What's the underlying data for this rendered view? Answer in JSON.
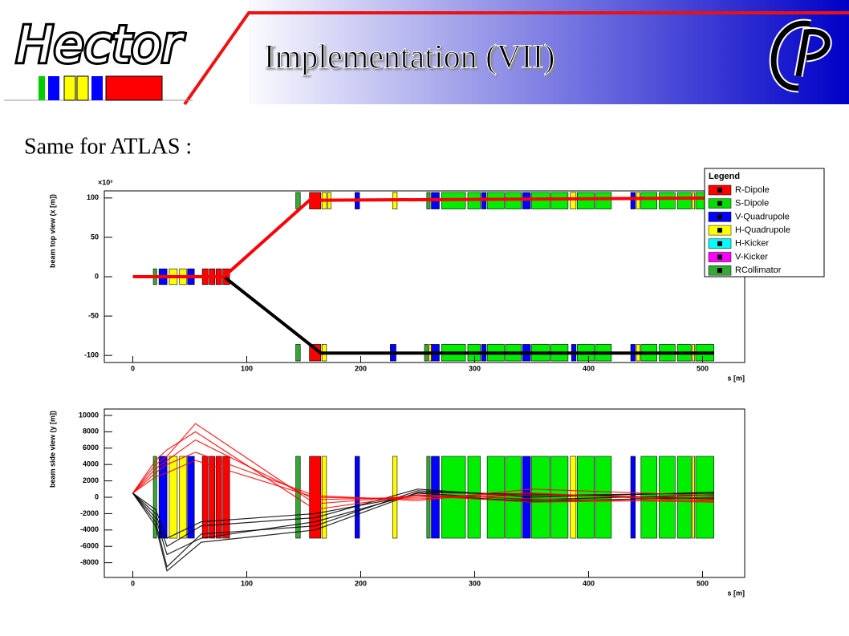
{
  "header": {
    "title": "Implementation (VII)",
    "logo": "Hector"
  },
  "text": "Same for ATLAS :",
  "chart_data": [
    {
      "type": "line",
      "ylabel": "beam top view (x [m])",
      "y_multiplier": "×10³",
      "xlabel": "s [m]",
      "xlim": [
        -25,
        537
      ],
      "ylim": [
        -109,
        109
      ],
      "xticks": [
        0,
        100,
        200,
        300,
        400,
        500
      ],
      "yticks": [
        -100,
        -50,
        0,
        50,
        100
      ],
      "legend_title": "Legend",
      "legend": [
        {
          "name": "R-Dipole",
          "color": "#ff0000"
        },
        {
          "name": "S-Dipole",
          "color": "#00dd00"
        },
        {
          "name": "V-Quadrupole",
          "color": "#0000ff"
        },
        {
          "name": "H-Quadrupole",
          "color": "#ffff00"
        },
        {
          "name": "H-Kicker",
          "color": "#00ffff"
        },
        {
          "name": "V-Kicker",
          "color": "#ff00ff"
        },
        {
          "name": "RCollimator",
          "color": "#33aa33"
        }
      ],
      "elements": [
        {
          "color": "#ff0000",
          "boxes": [
            [
              61,
              66,
              -10,
              10
            ],
            [
              67,
              72,
              -10,
              10
            ],
            [
              73,
              78,
              -10,
              10
            ],
            [
              79,
              85,
              -10,
              10
            ],
            [
              155,
              165,
              86,
              107
            ],
            [
              155,
              165,
              -107,
              -86
            ]
          ]
        },
        {
          "color": "#00ee00",
          "boxes": [
            [
              271,
              292,
              86,
              107
            ],
            [
              294,
              305,
              86,
              107
            ],
            [
              311,
              326,
              86,
              107
            ],
            [
              327,
              341,
              86,
              107
            ],
            [
              350,
              366,
              86,
              107
            ],
            [
              367,
              382,
              86,
              107
            ],
            [
              390,
              405,
              86,
              107
            ],
            [
              406,
              420,
              86,
              107
            ],
            [
              446,
              460,
              86,
              107
            ],
            [
              462,
              476,
              86,
              107
            ],
            [
              478,
              490,
              86,
              107
            ],
            [
              494,
              510,
              86,
              107
            ],
            [
              271,
              292,
              -107,
              -86
            ],
            [
              294,
              305,
              -107,
              -86
            ],
            [
              311,
              326,
              -107,
              -86
            ],
            [
              327,
              341,
              -107,
              -86
            ],
            [
              350,
              366,
              -107,
              -86
            ],
            [
              367,
              382,
              -107,
              -86
            ],
            [
              390,
              405,
              -107,
              -86
            ],
            [
              406,
              420,
              -107,
              -86
            ],
            [
              446,
              460,
              -107,
              -86
            ],
            [
              462,
              476,
              -107,
              -86
            ],
            [
              478,
              490,
              -107,
              -86
            ],
            [
              494,
              510,
              -107,
              -86
            ]
          ]
        },
        {
          "color": "#0000ff",
          "boxes": [
            [
              23,
              30,
              -10,
              10
            ],
            [
              48,
              54,
              -10,
              10
            ],
            [
              195,
              199,
              86,
              107
            ],
            [
              262,
              269,
              86,
              107
            ],
            [
              306,
              310,
              86,
              107
            ],
            [
              342,
              349,
              86,
              107
            ],
            [
              437,
              441,
              86,
              107
            ],
            [
              226,
              231,
              -107,
              -86
            ],
            [
              262,
              269,
              -107,
              -86
            ],
            [
              306,
              310,
              -107,
              -86
            ],
            [
              342,
              349,
              -107,
              -86
            ],
            [
              385,
              389,
              -107,
              -86
            ],
            [
              437,
              441,
              -107,
              -86
            ]
          ]
        },
        {
          "color": "#ffff00",
          "boxes": [
            [
              32,
              39,
              -10,
              10
            ],
            [
              41,
              47,
              -10,
              10
            ],
            [
              166,
              170,
              86,
              107
            ],
            [
              171,
              174,
              86,
              107
            ],
            [
              228,
              232,
              86,
              107
            ],
            [
              384,
              389,
              86,
              107
            ],
            [
              442,
              445,
              86,
              107
            ],
            [
              491,
              493,
              86,
              107
            ],
            [
              166,
              170,
              -107,
              -86
            ],
            [
              260,
              262,
              -107,
              -86
            ],
            [
              442,
              445,
              -107,
              -86
            ],
            [
              491,
              493,
              -107,
              -86
            ]
          ]
        },
        {
          "color": "#33aa33",
          "boxes": [
            [
              18,
              21,
              -10,
              10
            ],
            [
              143,
              147,
              86,
              107
            ],
            [
              258,
              261,
              86,
              107
            ],
            [
              143,
              147,
              -107,
              -86
            ],
            [
              256,
              259,
              -107,
              -86
            ]
          ]
        }
      ],
      "tracks": [
        {
          "color": "#000000",
          "x": [
            0,
            80,
            165,
            510
          ],
          "values": [
            0,
            0,
            -97,
            -97
          ]
        },
        {
          "color": "#ff0000",
          "x": [
            0,
            80,
            155,
            510
          ],
          "values": [
            0,
            0,
            97,
            100
          ]
        }
      ]
    },
    {
      "type": "line",
      "ylabel": "beam side view (y [m])",
      "xlabel": "s [m]",
      "xlim": [
        -25,
        537
      ],
      "ylim": [
        -9800,
        10780
      ],
      "xticks": [
        0,
        100,
        200,
        300,
        400,
        500
      ],
      "yticks": [
        -8000,
        -6000,
        -4000,
        -2000,
        0,
        2000,
        4000,
        6000,
        8000,
        10000
      ],
      "elements": [
        {
          "color": "#ff0000",
          "boxes": [
            [
              61,
              66,
              -5000,
              5000
            ],
            [
              67,
              72,
              -5000,
              5000
            ],
            [
              73,
              78,
              -5000,
              5000
            ],
            [
              79,
              85,
              -5000,
              5000
            ],
            [
              155,
              165,
              -5000,
              5000
            ]
          ]
        },
        {
          "color": "#00ee00",
          "boxes": [
            [
              271,
              292,
              -5000,
              5000
            ],
            [
              294,
              305,
              -5000,
              5000
            ],
            [
              311,
              326,
              -5000,
              5000
            ],
            [
              327,
              341,
              -5000,
              5000
            ],
            [
              350,
              366,
              -5000,
              5000
            ],
            [
              367,
              382,
              -5000,
              5000
            ],
            [
              390,
              405,
              -5000,
              5000
            ],
            [
              406,
              420,
              -5000,
              5000
            ],
            [
              446,
              460,
              -5000,
              5000
            ],
            [
              462,
              476,
              -5000,
              5000
            ],
            [
              478,
              490,
              -5000,
              5000
            ],
            [
              494,
              510,
              -5000,
              5000
            ]
          ]
        },
        {
          "color": "#0000ff",
          "boxes": [
            [
              23,
              30,
              -5000,
              5000
            ],
            [
              48,
              54,
              -5000,
              5000
            ],
            [
              195,
              199,
              -5000,
              5000
            ],
            [
              262,
              269,
              -5000,
              5000
            ],
            [
              342,
              349,
              -5000,
              5000
            ],
            [
              437,
              441,
              -5000,
              5000
            ]
          ]
        },
        {
          "color": "#ffff00",
          "boxes": [
            [
              32,
              39,
              -5000,
              5000
            ],
            [
              41,
              47,
              -5000,
              5000
            ],
            [
              166,
              170,
              -5000,
              5000
            ],
            [
              228,
              232,
              -5000,
              5000
            ],
            [
              384,
              389,
              -5000,
              5000
            ],
            [
              491,
              493,
              -5000,
              5000
            ]
          ]
        },
        {
          "color": "#33aa33",
          "boxes": [
            [
              18,
              21,
              -5000,
              5000
            ],
            [
              143,
              147,
              -5000,
              5000
            ],
            [
              258,
              261,
              -5000,
              5000
            ]
          ]
        }
      ],
      "tracks": [
        {
          "color": "#000000",
          "x": [
            0,
            20,
            30,
            60,
            160,
            250,
            350,
            510
          ],
          "values": [
            500,
            -3000,
            -8500,
            -4500,
            -3500,
            800,
            200,
            500
          ]
        },
        {
          "color": "#000000",
          "x": [
            0,
            20,
            30,
            60,
            160,
            250,
            350,
            510
          ],
          "values": [
            500,
            -2500,
            -7000,
            -5000,
            -3000,
            500,
            -300,
            300
          ]
        },
        {
          "color": "#000000",
          "x": [
            0,
            20,
            30,
            60,
            160,
            250,
            350,
            510
          ],
          "values": [
            500,
            -2000,
            -6000,
            -3500,
            -2500,
            1000,
            0,
            600
          ]
        },
        {
          "color": "#000000",
          "x": [
            0,
            20,
            30,
            60,
            160,
            250,
            350,
            510
          ],
          "values": [
            500,
            -3500,
            -9000,
            -5500,
            -4000,
            600,
            400,
            -200
          ]
        },
        {
          "color": "#000000",
          "x": [
            0,
            20,
            30,
            60,
            160,
            250,
            350,
            510
          ],
          "values": [
            500,
            -1500,
            -5000,
            -3000,
            -2000,
            300,
            -500,
            0
          ]
        },
        {
          "color": "#ff0000",
          "x": [
            0,
            20,
            30,
            55,
            160,
            250,
            350,
            510
          ],
          "values": [
            500,
            4000,
            5000,
            9000,
            -800,
            200,
            -600,
            -300
          ]
        },
        {
          "color": "#ff0000",
          "x": [
            0,
            20,
            30,
            55,
            160,
            250,
            350,
            510
          ],
          "values": [
            500,
            3500,
            4500,
            7000,
            -300,
            0,
            500,
            -500
          ]
        },
        {
          "color": "#ff0000",
          "x": [
            0,
            20,
            30,
            55,
            160,
            250,
            350,
            510
          ],
          "values": [
            500,
            3000,
            4000,
            5500,
            200,
            -400,
            1000,
            200
          ]
        },
        {
          "color": "#ff0000",
          "x": [
            0,
            20,
            30,
            55,
            160,
            250,
            350,
            510
          ],
          "values": [
            500,
            4500,
            5800,
            8000,
            -1500,
            300,
            -200,
            -600
          ]
        },
        {
          "color": "#ff0000",
          "x": [
            0,
            20,
            30,
            55,
            160,
            250,
            350,
            510
          ],
          "values": [
            500,
            2500,
            3000,
            4500,
            0,
            -200,
            300,
            -100
          ]
        }
      ]
    }
  ]
}
